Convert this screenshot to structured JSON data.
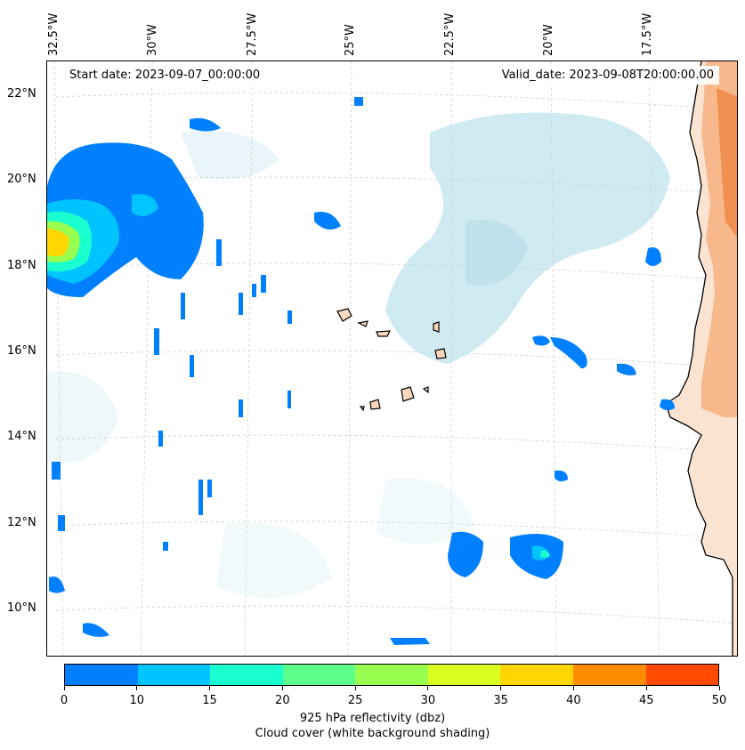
{
  "map": {
    "start_date": "Start date: 2023-09-07_00:00:00",
    "valid_date": "Valid_date: 2023-09-08T20:00:00.00",
    "longitude_labels": [
      "32.5°W",
      "30°W",
      "27.5°W",
      "25°W",
      "22.5°W",
      "20°W",
      "17.5°W"
    ],
    "latitude_labels": [
      "22°N",
      "20°N",
      "18°N",
      "16°N",
      "14°N",
      "12°N",
      "10°N"
    ],
    "region": "Eastern tropical Atlantic, Cape Verde islands and West African coast"
  },
  "colorbar": {
    "ticks": [
      "0",
      "10",
      "15",
      "20",
      "25",
      "30",
      "35",
      "40",
      "45",
      "50"
    ],
    "colors": [
      "#0080ff",
      "#00c4ff",
      "#1affd0",
      "#5cff8a",
      "#98ff50",
      "#d8ff20",
      "#ffd600",
      "#ff8c00",
      "#ff4a00"
    ],
    "label_line1": "925 hPa reflectivity (dbz)",
    "label_line2": "Cloud cover (white background shading)"
  }
}
